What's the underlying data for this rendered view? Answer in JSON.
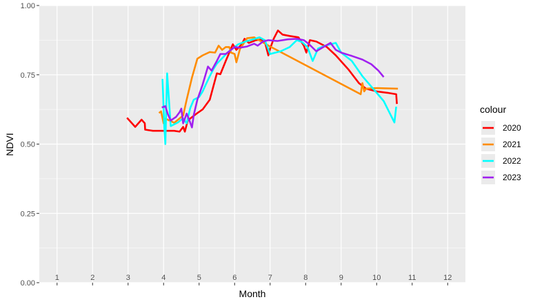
{
  "chart_data": {
    "type": "line",
    "title": "",
    "xlabel": "Month",
    "ylabel": "NDVI",
    "xlim": [
      0.5,
      12.5
    ],
    "ylim": [
      0,
      1
    ],
    "x_ticks": [
      1,
      2,
      3,
      4,
      5,
      6,
      7,
      8,
      9,
      10,
      11,
      12
    ],
    "x_tick_labels": [
      "1",
      "2",
      "3",
      "4",
      "5",
      "6",
      "7",
      "8",
      "9",
      "10",
      "11",
      "12"
    ],
    "y_ticks": [
      0,
      0.25,
      0.5,
      0.75,
      1
    ],
    "y_tick_labels": [
      "0.00",
      "0.25",
      "0.50",
      "0.75",
      "1.00"
    ],
    "grid": true,
    "legend": {
      "title": "colour",
      "position": "right"
    },
    "series": [
      {
        "name": "2020",
        "color": "#ff0000",
        "points": [
          [
            2.97,
            0.595
          ],
          [
            3.2,
            0.562
          ],
          [
            3.38,
            0.588
          ],
          [
            3.47,
            0.575
          ],
          [
            3.48,
            0.552
          ],
          [
            3.7,
            0.548
          ],
          [
            4.3,
            0.548
          ],
          [
            4.45,
            0.545
          ],
          [
            4.55,
            0.562
          ],
          [
            4.6,
            0.545
          ],
          [
            4.68,
            0.585
          ],
          [
            4.8,
            0.597
          ],
          [
            4.95,
            0.612
          ],
          [
            5.1,
            0.625
          ],
          [
            5.3,
            0.66
          ],
          [
            5.5,
            0.755
          ],
          [
            5.6,
            0.752
          ],
          [
            5.75,
            0.8
          ],
          [
            5.85,
            0.83
          ],
          [
            5.95,
            0.86
          ],
          [
            6.05,
            0.84
          ],
          [
            6.2,
            0.86
          ],
          [
            6.28,
            0.88
          ],
          [
            6.4,
            0.865
          ],
          [
            6.6,
            0.875
          ],
          [
            6.72,
            0.877
          ],
          [
            6.85,
            0.87
          ],
          [
            6.95,
            0.82
          ],
          [
            7.0,
            0.845
          ],
          [
            7.1,
            0.88
          ],
          [
            7.22,
            0.91
          ],
          [
            7.35,
            0.895
          ],
          [
            7.55,
            0.89
          ],
          [
            7.8,
            0.885
          ],
          [
            7.95,
            0.855
          ],
          [
            8.02,
            0.83
          ],
          [
            8.12,
            0.875
          ],
          [
            8.3,
            0.87
          ],
          [
            8.6,
            0.85
          ],
          [
            8.85,
            0.82
          ],
          [
            9.2,
            0.77
          ],
          [
            9.5,
            0.72
          ],
          [
            9.7,
            0.7
          ],
          [
            10.0,
            0.69
          ],
          [
            10.3,
            0.685
          ],
          [
            10.55,
            0.68
          ],
          [
            10.57,
            0.645
          ]
        ]
      },
      {
        "name": "2021",
        "color": "#ff8c00",
        "points": [
          [
            3.87,
            0.612
          ],
          [
            3.93,
            0.618
          ],
          [
            4.0,
            0.575
          ],
          [
            4.05,
            0.592
          ],
          [
            4.3,
            0.577
          ],
          [
            4.55,
            0.603
          ],
          [
            4.65,
            0.66
          ],
          [
            4.8,
            0.74
          ],
          [
            4.95,
            0.808
          ],
          [
            5.1,
            0.82
          ],
          [
            5.3,
            0.832
          ],
          [
            5.45,
            0.83
          ],
          [
            5.55,
            0.855
          ],
          [
            5.65,
            0.84
          ],
          [
            5.75,
            0.85
          ],
          [
            5.85,
            0.85
          ],
          [
            5.9,
            0.83
          ],
          [
            6.0,
            0.825
          ],
          [
            6.05,
            0.795
          ],
          [
            6.15,
            0.843
          ],
          [
            6.35,
            0.882
          ],
          [
            6.55,
            0.885
          ],
          [
            6.75,
            0.87
          ],
          [
            7.0,
            0.852
          ],
          [
            9.55,
            0.68
          ],
          [
            9.6,
            0.72
          ],
          [
            9.65,
            0.69
          ],
          [
            9.7,
            0.7
          ],
          [
            10.0,
            0.702
          ],
          [
            10.6,
            0.7
          ]
        ]
      },
      {
        "name": "2022",
        "color": "#00ffff",
        "points": [
          [
            3.97,
            0.735
          ],
          [
            4.02,
            0.56
          ],
          [
            4.05,
            0.5
          ],
          [
            4.1,
            0.755
          ],
          [
            4.2,
            0.565
          ],
          [
            4.4,
            0.578
          ],
          [
            4.55,
            0.593
          ],
          [
            4.65,
            0.575
          ],
          [
            4.75,
            0.63
          ],
          [
            4.85,
            0.66
          ],
          [
            5.0,
            0.67
          ],
          [
            5.1,
            0.69
          ],
          [
            5.2,
            0.718
          ],
          [
            5.3,
            0.745
          ],
          [
            5.4,
            0.77
          ],
          [
            5.5,
            0.79
          ],
          [
            5.65,
            0.81
          ],
          [
            5.8,
            0.83
          ],
          [
            5.95,
            0.845
          ],
          [
            6.1,
            0.86
          ],
          [
            6.3,
            0.87
          ],
          [
            6.5,
            0.877
          ],
          [
            6.7,
            0.885
          ],
          [
            6.85,
            0.875
          ],
          [
            7.0,
            0.825
          ],
          [
            7.3,
            0.835
          ],
          [
            7.55,
            0.85
          ],
          [
            7.75,
            0.875
          ],
          [
            7.9,
            0.868
          ],
          [
            8.05,
            0.85
          ],
          [
            8.2,
            0.8
          ],
          [
            8.35,
            0.845
          ],
          [
            8.55,
            0.855
          ],
          [
            8.7,
            0.86
          ],
          [
            8.85,
            0.865
          ],
          [
            9.0,
            0.83
          ],
          [
            9.3,
            0.8
          ],
          [
            9.6,
            0.745
          ],
          [
            9.9,
            0.7
          ],
          [
            10.2,
            0.655
          ],
          [
            10.5,
            0.578
          ],
          [
            10.55,
            0.635
          ]
        ]
      },
      {
        "name": "2023",
        "color": "#a020f0",
        "points": [
          [
            3.95,
            0.632
          ],
          [
            4.05,
            0.637
          ],
          [
            4.12,
            0.608
          ],
          [
            4.2,
            0.585
          ],
          [
            4.35,
            0.598
          ],
          [
            4.45,
            0.615
          ],
          [
            4.5,
            0.628
          ],
          [
            4.55,
            0.575
          ],
          [
            4.65,
            0.61
          ],
          [
            4.72,
            0.588
          ],
          [
            4.8,
            0.56
          ],
          [
            4.85,
            0.605
          ],
          [
            4.95,
            0.66
          ],
          [
            5.1,
            0.715
          ],
          [
            5.25,
            0.78
          ],
          [
            5.35,
            0.765
          ],
          [
            5.5,
            0.8
          ],
          [
            5.6,
            0.825
          ],
          [
            5.75,
            0.825
          ],
          [
            5.85,
            0.835
          ],
          [
            6.0,
            0.85
          ],
          [
            6.15,
            0.848
          ],
          [
            6.35,
            0.852
          ],
          [
            6.55,
            0.862
          ],
          [
            6.65,
            0.855
          ],
          [
            6.8,
            0.87
          ],
          [
            6.95,
            0.875
          ],
          [
            7.2,
            0.872
          ],
          [
            7.5,
            0.878
          ],
          [
            7.75,
            0.88
          ],
          [
            7.95,
            0.875
          ],
          [
            8.1,
            0.86
          ],
          [
            8.3,
            0.835
          ],
          [
            8.5,
            0.85
          ],
          [
            8.7,
            0.865
          ],
          [
            8.85,
            0.84
          ],
          [
            9.0,
            0.83
          ],
          [
            9.3,
            0.818
          ],
          [
            9.6,
            0.805
          ],
          [
            9.85,
            0.788
          ],
          [
            10.05,
            0.765
          ],
          [
            10.2,
            0.742
          ]
        ]
      }
    ]
  }
}
